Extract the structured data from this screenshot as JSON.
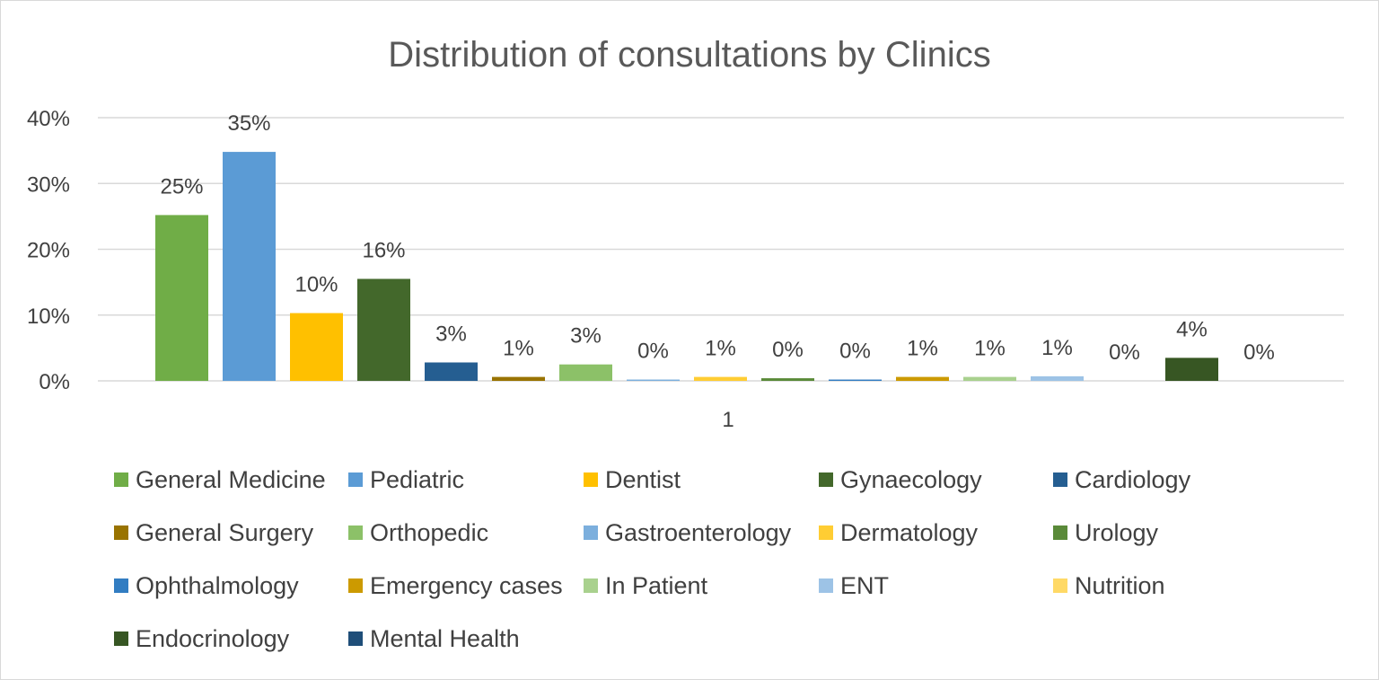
{
  "chart_data": {
    "type": "bar",
    "title": "Distribution of consultations by Clinics",
    "categories": [
      "1"
    ],
    "ylim": [
      0,
      40
    ],
    "yticks": [
      0,
      10,
      20,
      30,
      40
    ],
    "ytick_labels": [
      "0%",
      "10%",
      "20%",
      "30%",
      "40%"
    ],
    "grid": true,
    "legend_position": "bottom",
    "series": [
      {
        "name": "General Medicine",
        "value": 25.2,
        "label": "25%",
        "color": "#70ad47"
      },
      {
        "name": "Pediatric",
        "value": 34.8,
        "label": "35%",
        "color": "#5b9bd5"
      },
      {
        "name": "Dentist",
        "value": 10.3,
        "label": "10%",
        "color": "#ffc000"
      },
      {
        "name": "Gynaecology",
        "value": 15.5,
        "label": "16%",
        "color": "#43682b"
      },
      {
        "name": "Cardiology",
        "value": 2.8,
        "label": "3%",
        "color": "#255e91"
      },
      {
        "name": "General Surgery",
        "value": 0.6,
        "label": "1%",
        "color": "#997300"
      },
      {
        "name": "Orthopedic",
        "value": 2.5,
        "label": "3%",
        "color": "#8cc168"
      },
      {
        "name": "Gastroenterology",
        "value": 0.2,
        "label": "0%",
        "color": "#7cafdd"
      },
      {
        "name": "Dermatology",
        "value": 0.6,
        "label": "1%",
        "color": "#ffcd33"
      },
      {
        "name": "Urology",
        "value": 0.4,
        "label": "0%",
        "color": "#5a8a39"
      },
      {
        "name": "Ophthalmology",
        "value": 0.2,
        "label": "0%",
        "color": "#327dc2"
      },
      {
        "name": "Emergency cases",
        "value": 0.6,
        "label": "1%",
        "color": "#cc9a00"
      },
      {
        "name": "In Patient",
        "value": 0.6,
        "label": "1%",
        "color": "#a9d18e"
      },
      {
        "name": "ENT",
        "value": 0.7,
        "label": "1%",
        "color": "#9dc3e6"
      },
      {
        "name": "Nutrition",
        "value": 0.0,
        "label": "0%",
        "color": "#ffd966"
      },
      {
        "name": "Endocrinology",
        "value": 3.5,
        "label": "4%",
        "color": "#375623"
      },
      {
        "name": "Mental Health",
        "value": 0.0,
        "label": "0%",
        "color": "#1f4e79"
      }
    ]
  }
}
